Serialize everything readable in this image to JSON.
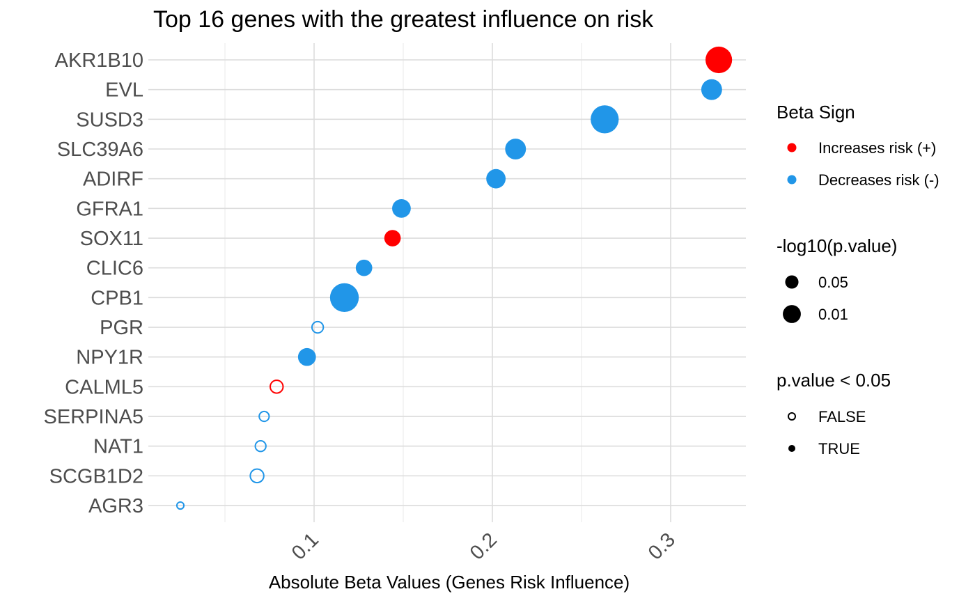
{
  "chart_data": {
    "type": "scatter",
    "title": "Top 16 genes with the greatest influence on risk",
    "xlabel": "Absolute Beta Values (Genes Risk Influence)",
    "ylabel": "",
    "xlim": [
      0.0,
      0.344
    ],
    "x_ticks": [
      0.1,
      0.2,
      0.3
    ],
    "x_tick_labels": [
      "0.1",
      "0.2",
      "0.3"
    ],
    "grid": true,
    "colors": {
      "increases": "#ff0000",
      "decreases": "#2196e8"
    },
    "points": [
      {
        "gene": "AKR1B10",
        "beta": 0.327,
        "sign": "increases",
        "neg_log10_p": 3.0,
        "significant": true
      },
      {
        "gene": "EVL",
        "beta": 0.323,
        "sign": "decreases",
        "neg_log10_p": 2.2,
        "significant": true
      },
      {
        "gene": "SUSD3",
        "beta": 0.263,
        "sign": "decreases",
        "neg_log10_p": 3.2,
        "significant": true
      },
      {
        "gene": "SLC39A6",
        "beta": 0.213,
        "sign": "decreases",
        "neg_log10_p": 2.2,
        "significant": true
      },
      {
        "gene": "ADIRF",
        "beta": 0.202,
        "sign": "decreases",
        "neg_log10_p": 2.0,
        "significant": true
      },
      {
        "gene": "GFRA1",
        "beta": 0.149,
        "sign": "decreases",
        "neg_log10_p": 1.9,
        "significant": true
      },
      {
        "gene": "SOX11",
        "beta": 0.144,
        "sign": "increases",
        "neg_log10_p": 1.6,
        "significant": true
      },
      {
        "gene": "CLIC6",
        "beta": 0.128,
        "sign": "decreases",
        "neg_log10_p": 1.6,
        "significant": true
      },
      {
        "gene": "CPB1",
        "beta": 0.117,
        "sign": "decreases",
        "neg_log10_p": 3.3,
        "significant": true
      },
      {
        "gene": "PGR",
        "beta": 0.102,
        "sign": "decreases",
        "neg_log10_p": 0.9,
        "significant": false
      },
      {
        "gene": "NPY1R",
        "beta": 0.096,
        "sign": "decreases",
        "neg_log10_p": 1.8,
        "significant": true
      },
      {
        "gene": "CALML5",
        "beta": 0.079,
        "sign": "increases",
        "neg_log10_p": 1.1,
        "significant": false
      },
      {
        "gene": "SERPINA5",
        "beta": 0.072,
        "sign": "decreases",
        "neg_log10_p": 0.7,
        "significant": false
      },
      {
        "gene": "NAT1",
        "beta": 0.07,
        "sign": "decreases",
        "neg_log10_p": 0.8,
        "significant": false
      },
      {
        "gene": "SCGB1D2",
        "beta": 0.068,
        "sign": "decreases",
        "neg_log10_p": 1.2,
        "significant": false
      },
      {
        "gene": "AGR3",
        "beta": 0.025,
        "sign": "decreases",
        "neg_log10_p": 0.3,
        "significant": false
      }
    ],
    "legends": [
      {
        "title": "Beta Sign",
        "items": [
          {
            "label": "Increases risk (+)",
            "color": "#ff0000"
          },
          {
            "label": "Decreases risk (-)",
            "color": "#2196e8"
          }
        ]
      },
      {
        "title": "-log10(p.value)",
        "items": [
          {
            "label": "0.05",
            "size": 1.3
          },
          {
            "label": "0.01",
            "size": 2.0
          }
        ]
      },
      {
        "title": "p.value < 0.05",
        "items": [
          {
            "label": "FALSE",
            "filled": false
          },
          {
            "label": "TRUE",
            "filled": true
          }
        ]
      }
    ],
    "legend_position": "right"
  }
}
